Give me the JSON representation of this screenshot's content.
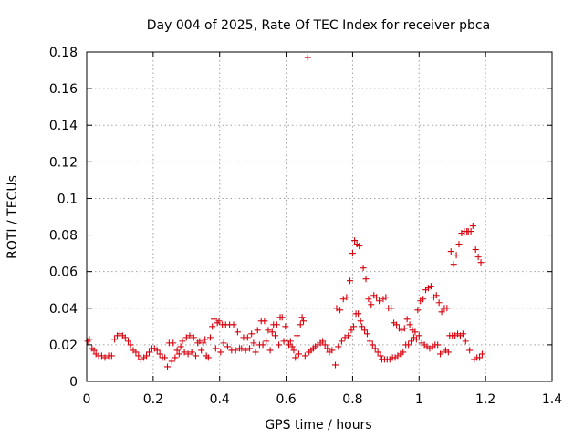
{
  "chart_data": {
    "type": "scatter",
    "title": "Day 004 of 2025, Rate Of TEC Index for receiver pbca",
    "xlabel": "GPS time / hours",
    "ylabel": "ROTI / TECUs",
    "xlim": [
      0,
      1.4
    ],
    "ylim": [
      0,
      0.18
    ],
    "x_ticks": [
      {
        "value": 0,
        "label": "0"
      },
      {
        "value": 0.2,
        "label": "0.2"
      },
      {
        "value": 0.4,
        "label": "0.4"
      },
      {
        "value": 0.6,
        "label": "0.6"
      },
      {
        "value": 0.8,
        "label": "0.8"
      },
      {
        "value": 1.0,
        "label": "1"
      },
      {
        "value": 1.2,
        "label": "1.2"
      },
      {
        "value": 1.4,
        "label": "1.4"
      }
    ],
    "y_ticks": [
      {
        "value": 0,
        "label": "0"
      },
      {
        "value": 0.02,
        "label": "0.02"
      },
      {
        "value": 0.04,
        "label": "0.04"
      },
      {
        "value": 0.06,
        "label": "0.06"
      },
      {
        "value": 0.08,
        "label": "0.08"
      },
      {
        "value": 0.1,
        "label": "0.1"
      },
      {
        "value": 0.12,
        "label": "0.12"
      },
      {
        "value": 0.14,
        "label": "0.14"
      },
      {
        "value": 0.16,
        "label": "0.16"
      },
      {
        "value": 0.18,
        "label": "0.18"
      }
    ],
    "grid": true,
    "marker_color": "#d8000c",
    "marker": "plus",
    "series": [
      {
        "points": [
          [
            0.003,
            0.022
          ],
          [
            0.008,
            0.023
          ],
          [
            0.016,
            0.018
          ],
          [
            0.022,
            0.017
          ],
          [
            0.028,
            0.015
          ],
          [
            0.036,
            0.014
          ],
          [
            0.045,
            0.014
          ],
          [
            0.055,
            0.013
          ],
          [
            0.066,
            0.014
          ],
          [
            0.075,
            0.014
          ],
          [
            0.084,
            0.023
          ],
          [
            0.092,
            0.025
          ],
          [
            0.1,
            0.026
          ],
          [
            0.108,
            0.025
          ],
          [
            0.116,
            0.024
          ],
          [
            0.125,
            0.022
          ],
          [
            0.132,
            0.02
          ],
          [
            0.14,
            0.017
          ],
          [
            0.148,
            0.016
          ],
          [
            0.156,
            0.014
          ],
          [
            0.163,
            0.012
          ],
          [
            0.172,
            0.013
          ],
          [
            0.18,
            0.014
          ],
          [
            0.188,
            0.016
          ],
          [
            0.196,
            0.018
          ],
          [
            0.204,
            0.018
          ],
          [
            0.212,
            0.017
          ],
          [
            0.22,
            0.015
          ],
          [
            0.228,
            0.013
          ],
          [
            0.235,
            0.013
          ],
          [
            0.243,
            0.008
          ],
          [
            0.248,
            0.021
          ],
          [
            0.256,
            0.011
          ],
          [
            0.26,
            0.021
          ],
          [
            0.266,
            0.013
          ],
          [
            0.272,
            0.017
          ],
          [
            0.278,
            0.015
          ],
          [
            0.283,
            0.019
          ],
          [
            0.288,
            0.022
          ],
          [
            0.294,
            0.016
          ],
          [
            0.3,
            0.024
          ],
          [
            0.305,
            0.015
          ],
          [
            0.31,
            0.025
          ],
          [
            0.316,
            0.016
          ],
          [
            0.322,
            0.024
          ],
          [
            0.328,
            0.014
          ],
          [
            0.334,
            0.021
          ],
          [
            0.34,
            0.022
          ],
          [
            0.345,
            0.017
          ],
          [
            0.351,
            0.021
          ],
          [
            0.356,
            0.023
          ],
          [
            0.36,
            0.014
          ],
          [
            0.366,
            0.013
          ],
          [
            0.372,
            0.024
          ],
          [
            0.378,
            0.03
          ],
          [
            0.383,
            0.034
          ],
          [
            0.388,
            0.018
          ],
          [
            0.393,
            0.032
          ],
          [
            0.398,
            0.033
          ],
          [
            0.403,
            0.016
          ],
          [
            0.408,
            0.031
          ],
          [
            0.412,
            0.021
          ],
          [
            0.418,
            0.031
          ],
          [
            0.424,
            0.019
          ],
          [
            0.43,
            0.031
          ],
          [
            0.436,
            0.017
          ],
          [
            0.442,
            0.031
          ],
          [
            0.448,
            0.017
          ],
          [
            0.454,
            0.027
          ],
          [
            0.46,
            0.018
          ],
          [
            0.466,
            0.018
          ],
          [
            0.472,
            0.024
          ],
          [
            0.478,
            0.017
          ],
          [
            0.484,
            0.024
          ],
          [
            0.49,
            0.018
          ],
          [
            0.496,
            0.026
          ],
          [
            0.502,
            0.021
          ],
          [
            0.508,
            0.016
          ],
          [
            0.514,
            0.028
          ],
          [
            0.52,
            0.02
          ],
          [
            0.525,
            0.033
          ],
          [
            0.53,
            0.02
          ],
          [
            0.535,
            0.033
          ],
          [
            0.54,
            0.022
          ],
          [
            0.546,
            0.028
          ],
          [
            0.552,
            0.017
          ],
          [
            0.558,
            0.027
          ],
          [
            0.562,
            0.031
          ],
          [
            0.567,
            0.025
          ],
          [
            0.572,
            0.031
          ],
          [
            0.578,
            0.02
          ],
          [
            0.582,
            0.035
          ],
          [
            0.588,
            0.035
          ],
          [
            0.593,
            0.022
          ],
          [
            0.598,
            0.03
          ],
          [
            0.603,
            0.022
          ],
          [
            0.608,
            0.02
          ],
          [
            0.613,
            0.022
          ],
          [
            0.618,
            0.019
          ],
          [
            0.623,
            0.017
          ],
          [
            0.628,
            0.013
          ],
          [
            0.633,
            0.025
          ],
          [
            0.638,
            0.015
          ],
          [
            0.643,
            0.031
          ],
          [
            0.648,
            0.035
          ],
          [
            0.652,
            0.033
          ],
          [
            0.657,
            0.014
          ],
          [
            0.665,
            0.177
          ],
          [
            0.669,
            0.016
          ],
          [
            0.675,
            0.017
          ],
          [
            0.682,
            0.018
          ],
          [
            0.688,
            0.019
          ],
          [
            0.695,
            0.02
          ],
          [
            0.703,
            0.021
          ],
          [
            0.71,
            0.022
          ],
          [
            0.717,
            0.02
          ],
          [
            0.724,
            0.018
          ],
          [
            0.73,
            0.016
          ],
          [
            0.738,
            0.017
          ],
          [
            0.748,
            0.009
          ],
          [
            0.752,
            0.04
          ],
          [
            0.757,
            0.019
          ],
          [
            0.762,
            0.039
          ],
          [
            0.767,
            0.022
          ],
          [
            0.772,
            0.045
          ],
          [
            0.777,
            0.024
          ],
          [
            0.782,
            0.046
          ],
          [
            0.787,
            0.025
          ],
          [
            0.792,
            0.055
          ],
          [
            0.796,
            0.028
          ],
          [
            0.8,
            0.07
          ],
          [
            0.803,
            0.03
          ],
          [
            0.806,
            0.077
          ],
          [
            0.81,
            0.037
          ],
          [
            0.813,
            0.075
          ],
          [
            0.817,
            0.037
          ],
          [
            0.82,
            0.074
          ],
          [
            0.824,
            0.033
          ],
          [
            0.828,
            0.03
          ],
          [
            0.832,
            0.062
          ],
          [
            0.836,
            0.028
          ],
          [
            0.84,
            0.056
          ],
          [
            0.844,
            0.026
          ],
          [
            0.848,
            0.045
          ],
          [
            0.852,
            0.022
          ],
          [
            0.856,
            0.042
          ],
          [
            0.86,
            0.02
          ],
          [
            0.864,
            0.047
          ],
          [
            0.868,
            0.018
          ],
          [
            0.872,
            0.046
          ],
          [
            0.876,
            0.016
          ],
          [
            0.88,
            0.044
          ],
          [
            0.884,
            0.014
          ],
          [
            0.888,
            0.012
          ],
          [
            0.892,
            0.045
          ],
          [
            0.896,
            0.012
          ],
          [
            0.9,
            0.046
          ],
          [
            0.904,
            0.012
          ],
          [
            0.908,
            0.04
          ],
          [
            0.912,
            0.012
          ],
          [
            0.916,
            0.04
          ],
          [
            0.92,
            0.013
          ],
          [
            0.924,
            0.032
          ],
          [
            0.928,
            0.013
          ],
          [
            0.932,
            0.031
          ],
          [
            0.936,
            0.014
          ],
          [
            0.94,
            0.029
          ],
          [
            0.944,
            0.015
          ],
          [
            0.948,
            0.028
          ],
          [
            0.952,
            0.016
          ],
          [
            0.956,
            0.029
          ],
          [
            0.96,
            0.02
          ],
          [
            0.964,
            0.034
          ],
          [
            0.968,
            0.02
          ],
          [
            0.972,
            0.031
          ],
          [
            0.976,
            0.022
          ],
          [
            0.98,
            0.028
          ],
          [
            0.984,
            0.024
          ],
          [
            0.988,
            0.027
          ],
          [
            0.992,
            0.023
          ],
          [
            0.996,
            0.039
          ],
          [
            1.0,
            0.025
          ],
          [
            1.004,
            0.044
          ],
          [
            1.008,
            0.021
          ],
          [
            1.012,
            0.045
          ],
          [
            1.016,
            0.02
          ],
          [
            1.02,
            0.05
          ],
          [
            1.024,
            0.019
          ],
          [
            1.028,
            0.051
          ],
          [
            1.032,
            0.018
          ],
          [
            1.036,
            0.052
          ],
          [
            1.04,
            0.019
          ],
          [
            1.044,
            0.046
          ],
          [
            1.048,
            0.02
          ],
          [
            1.052,
            0.047
          ],
          [
            1.056,
            0.02
          ],
          [
            1.06,
            0.043
          ],
          [
            1.064,
            0.015
          ],
          [
            1.068,
            0.038
          ],
          [
            1.072,
            0.016
          ],
          [
            1.076,
            0.04
          ],
          [
            1.08,
            0.017
          ],
          [
            1.084,
            0.04
          ],
          [
            1.088,
            0.016
          ],
          [
            1.092,
            0.025
          ],
          [
            1.096,
            0.071
          ],
          [
            1.1,
            0.025
          ],
          [
            1.104,
            0.064
          ],
          [
            1.108,
            0.025
          ],
          [
            1.112,
            0.069
          ],
          [
            1.116,
            0.026
          ],
          [
            1.12,
            0.075
          ],
          [
            1.124,
            0.025
          ],
          [
            1.128,
            0.081
          ],
          [
            1.132,
            0.026
          ],
          [
            1.136,
            0.082
          ],
          [
            1.14,
            0.022
          ],
          [
            1.144,
            0.082
          ],
          [
            1.148,
            0.082
          ],
          [
            1.152,
            0.017
          ],
          [
            1.156,
            0.082
          ],
          [
            1.162,
            0.085
          ],
          [
            1.166,
            0.012
          ],
          [
            1.17,
            0.072
          ],
          [
            1.174,
            0.013
          ],
          [
            1.178,
            0.068
          ],
          [
            1.182,
            0.013
          ],
          [
            1.186,
            0.065
          ],
          [
            1.19,
            0.015
          ]
        ]
      }
    ]
  }
}
